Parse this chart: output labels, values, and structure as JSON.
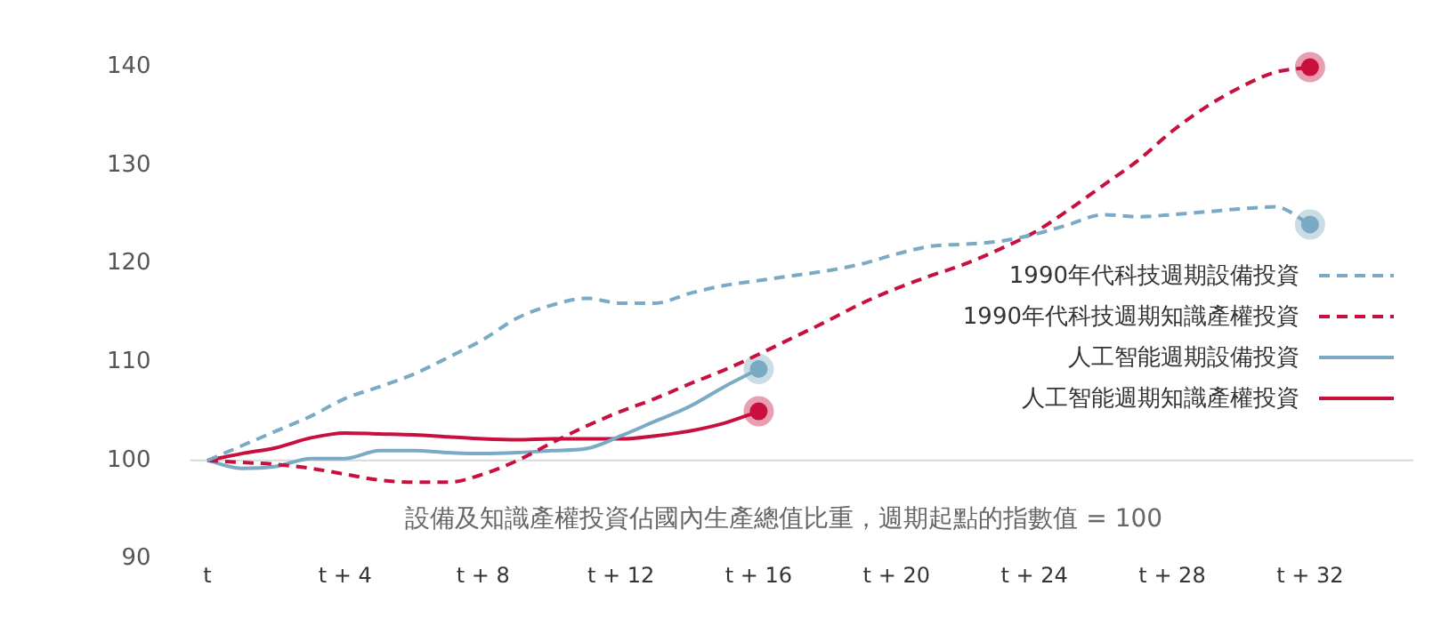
{
  "chart_data": {
    "type": "line",
    "x": [
      0,
      1,
      2,
      3,
      4,
      5,
      6,
      7,
      8,
      9,
      10,
      11,
      12,
      13,
      14,
      15,
      16,
      17,
      18,
      19,
      20,
      21,
      22,
      23,
      24,
      25,
      26,
      27,
      28,
      29,
      30,
      31,
      32
    ],
    "xlim": [
      -0.5,
      35
    ],
    "xticks": [
      {
        "value": 0,
        "label": "t"
      },
      {
        "value": 4,
        "label": "t + 4"
      },
      {
        "value": 8,
        "label": "t + 8"
      },
      {
        "value": 12,
        "label": "t + 12"
      },
      {
        "value": 16,
        "label": "t + 16"
      },
      {
        "value": 20,
        "label": "t + 20"
      },
      {
        "value": 24,
        "label": "t + 24"
      },
      {
        "value": 28,
        "label": "t + 28"
      },
      {
        "value": 32,
        "label": "t + 32"
      }
    ],
    "ylim": [
      90,
      140
    ],
    "yticks": [
      90,
      100,
      110,
      120,
      130,
      140
    ],
    "grid": false,
    "legend": "right",
    "ref_lines": [
      {
        "axis": "y",
        "value": 100,
        "color": "#d9d9d9"
      }
    ],
    "annotations": [
      "設備及知識產權投資佔國內生產總值比重，週期起點的指數值 = 100"
    ],
    "series": [
      {
        "name": "1990年代科技週期設備投資",
        "color": "#7aaac4",
        "line_style": "dashed",
        "values": [
          100,
          101.5,
          103,
          104.5,
          106.3,
          107.5,
          108.8,
          110.5,
          112.3,
          114.5,
          115.8,
          116.5,
          116,
          116,
          117,
          117.8,
          118.3,
          118.8,
          119.3,
          120,
          121,
          121.8,
          122,
          122.3,
          123,
          124,
          125,
          124.8,
          125,
          125.3,
          125.6,
          125.8,
          124
        ]
      },
      {
        "name": "1990年代科技週期知識產權投資",
        "color": "#c8103e",
        "line_style": "dashed",
        "values": [
          100,
          99.8,
          99.6,
          99.2,
          98.6,
          98,
          97.8,
          97.8,
          98.6,
          100,
          101.8,
          103.5,
          105,
          106.3,
          107.8,
          109.2,
          110.8,
          112.5,
          114.2,
          116,
          117.5,
          118.8,
          120,
          121.5,
          123.2,
          125.5,
          128,
          130.5,
          133.5,
          136,
          138,
          139.5,
          140
        ]
      },
      {
        "name": "人工智能週期設備投資",
        "color": "#7aaac4",
        "line_style": "solid",
        "values": [
          100,
          99.2,
          99.4,
          100.2,
          100.2,
          101,
          101,
          100.8,
          100.7,
          100.8,
          101,
          101.2,
          102.5,
          104,
          105.5,
          107.5,
          109.3,
          null,
          null,
          null,
          null,
          null,
          null,
          null,
          null,
          null,
          null,
          null,
          null,
          null,
          null,
          null,
          null
        ]
      },
      {
        "name": "人工智能週期知識產權投資",
        "color": "#c8103e",
        "line_style": "solid",
        "values": [
          100,
          100.7,
          101.3,
          102.3,
          102.8,
          102.7,
          102.6,
          102.4,
          102.2,
          102.1,
          102.2,
          102.2,
          102.2,
          102.5,
          103,
          103.8,
          105,
          null,
          null,
          null,
          null,
          null,
          null,
          null,
          null,
          null,
          null,
          null,
          null,
          null,
          null,
          null,
          null
        ]
      }
    ]
  }
}
